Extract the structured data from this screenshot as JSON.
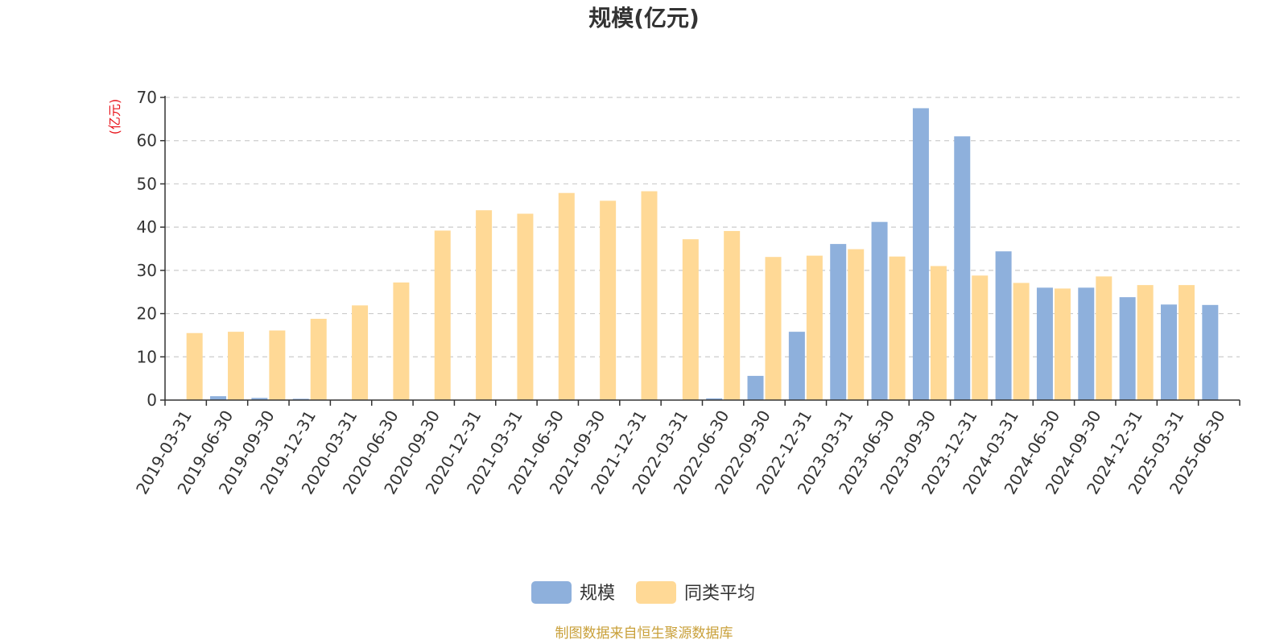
{
  "title": "规模(亿元)",
  "source": "制图数据来自恒生聚源数据库",
  "colors": {
    "scale": "#8eb0dc",
    "average": "#ffd996",
    "unit": "#e8141b",
    "source": "#c9a03a",
    "axis": "#333333",
    "grid": "#cccccc"
  },
  "chart_data": {
    "type": "bar",
    "title": "规模(亿元)",
    "ylabel": "(亿元)",
    "ylim": [
      0,
      70
    ],
    "yticks": [
      "0",
      "10",
      "20",
      "30",
      "40",
      "50",
      "60",
      "70"
    ],
    "grid": true,
    "legend_position": "bottom-center",
    "categories": [
      "2019-03-31",
      "2019-06-30",
      "2019-09-30",
      "2019-12-31",
      "2020-03-31",
      "2020-06-30",
      "2020-09-30",
      "2020-12-31",
      "2021-03-31",
      "2021-06-30",
      "2021-09-30",
      "2021-12-31",
      "2022-03-31",
      "2022-06-30",
      "2022-09-30",
      "2022-12-31",
      "2023-03-31",
      "2023-06-30",
      "2023-09-30",
      "2023-12-31",
      "2024-03-31",
      "2024-06-30",
      "2024-09-30",
      "2024-12-31",
      "2025-03-31",
      "2025-06-30"
    ],
    "series": [
      {
        "name": "规模",
        "values": [
          0.1,
          0.9,
          0.5,
          0.3,
          0.1,
          0.05,
          0.05,
          0.05,
          0.05,
          0.05,
          0.05,
          0.05,
          0.05,
          0.4,
          5.6,
          15.8,
          36.1,
          41.2,
          67.5,
          61.0,
          34.4,
          26.0,
          26.0,
          23.8,
          22.1,
          22.0
        ]
      },
      {
        "name": "同类平均",
        "values": [
          15.5,
          15.8,
          16.1,
          18.8,
          21.9,
          27.2,
          39.2,
          43.9,
          43.1,
          47.9,
          46.1,
          48.3,
          37.2,
          39.1,
          33.1,
          33.4,
          34.9,
          33.2,
          31.0,
          28.8,
          27.1,
          25.8,
          28.6,
          26.6,
          26.6,
          null
        ]
      }
    ]
  }
}
